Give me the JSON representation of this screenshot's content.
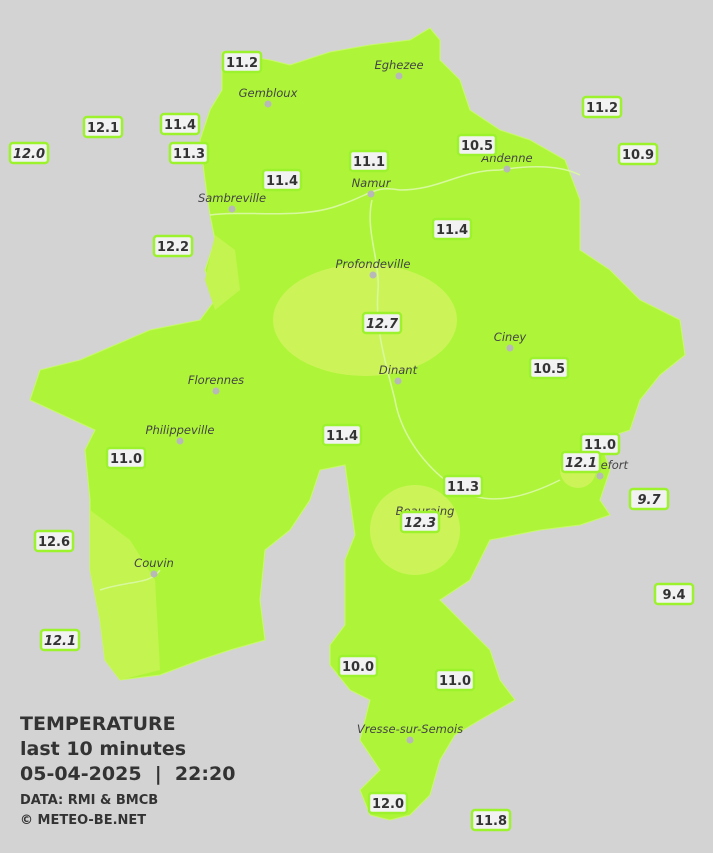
{
  "title": {
    "line1": "TEMPERATURE",
    "line2": "last 10 minutes",
    "line3": "05-04-2025  |  22:20",
    "source": "DATA: RMI & BMCB",
    "copyright": "© METEO-BE.NET"
  },
  "cities": [
    "Eghezee",
    "Gembloux",
    "Andenne",
    "Namur",
    "Sambreville",
    "Profondeville",
    "Ciney",
    "Dinant",
    "Florennes",
    "Philippeville",
    "Rochefort",
    "Beauraing",
    "Couvin",
    "Vresse-sur-Semois"
  ],
  "stations": [
    "11.2",
    "12.1",
    "12.0",
    "11.4",
    "11.3",
    "11.4",
    "11.1",
    "10.5",
    "11.2",
    "10.9",
    "12.2",
    "11.4",
    "12.7",
    "10.5",
    "11.4",
    "11.0",
    "11.0",
    "12.1",
    "11.3",
    "9.7",
    "12.3",
    "12.6",
    "9.4",
    "12.1",
    "10.0",
    "11.0",
    "12.0",
    "11.8"
  ]
}
